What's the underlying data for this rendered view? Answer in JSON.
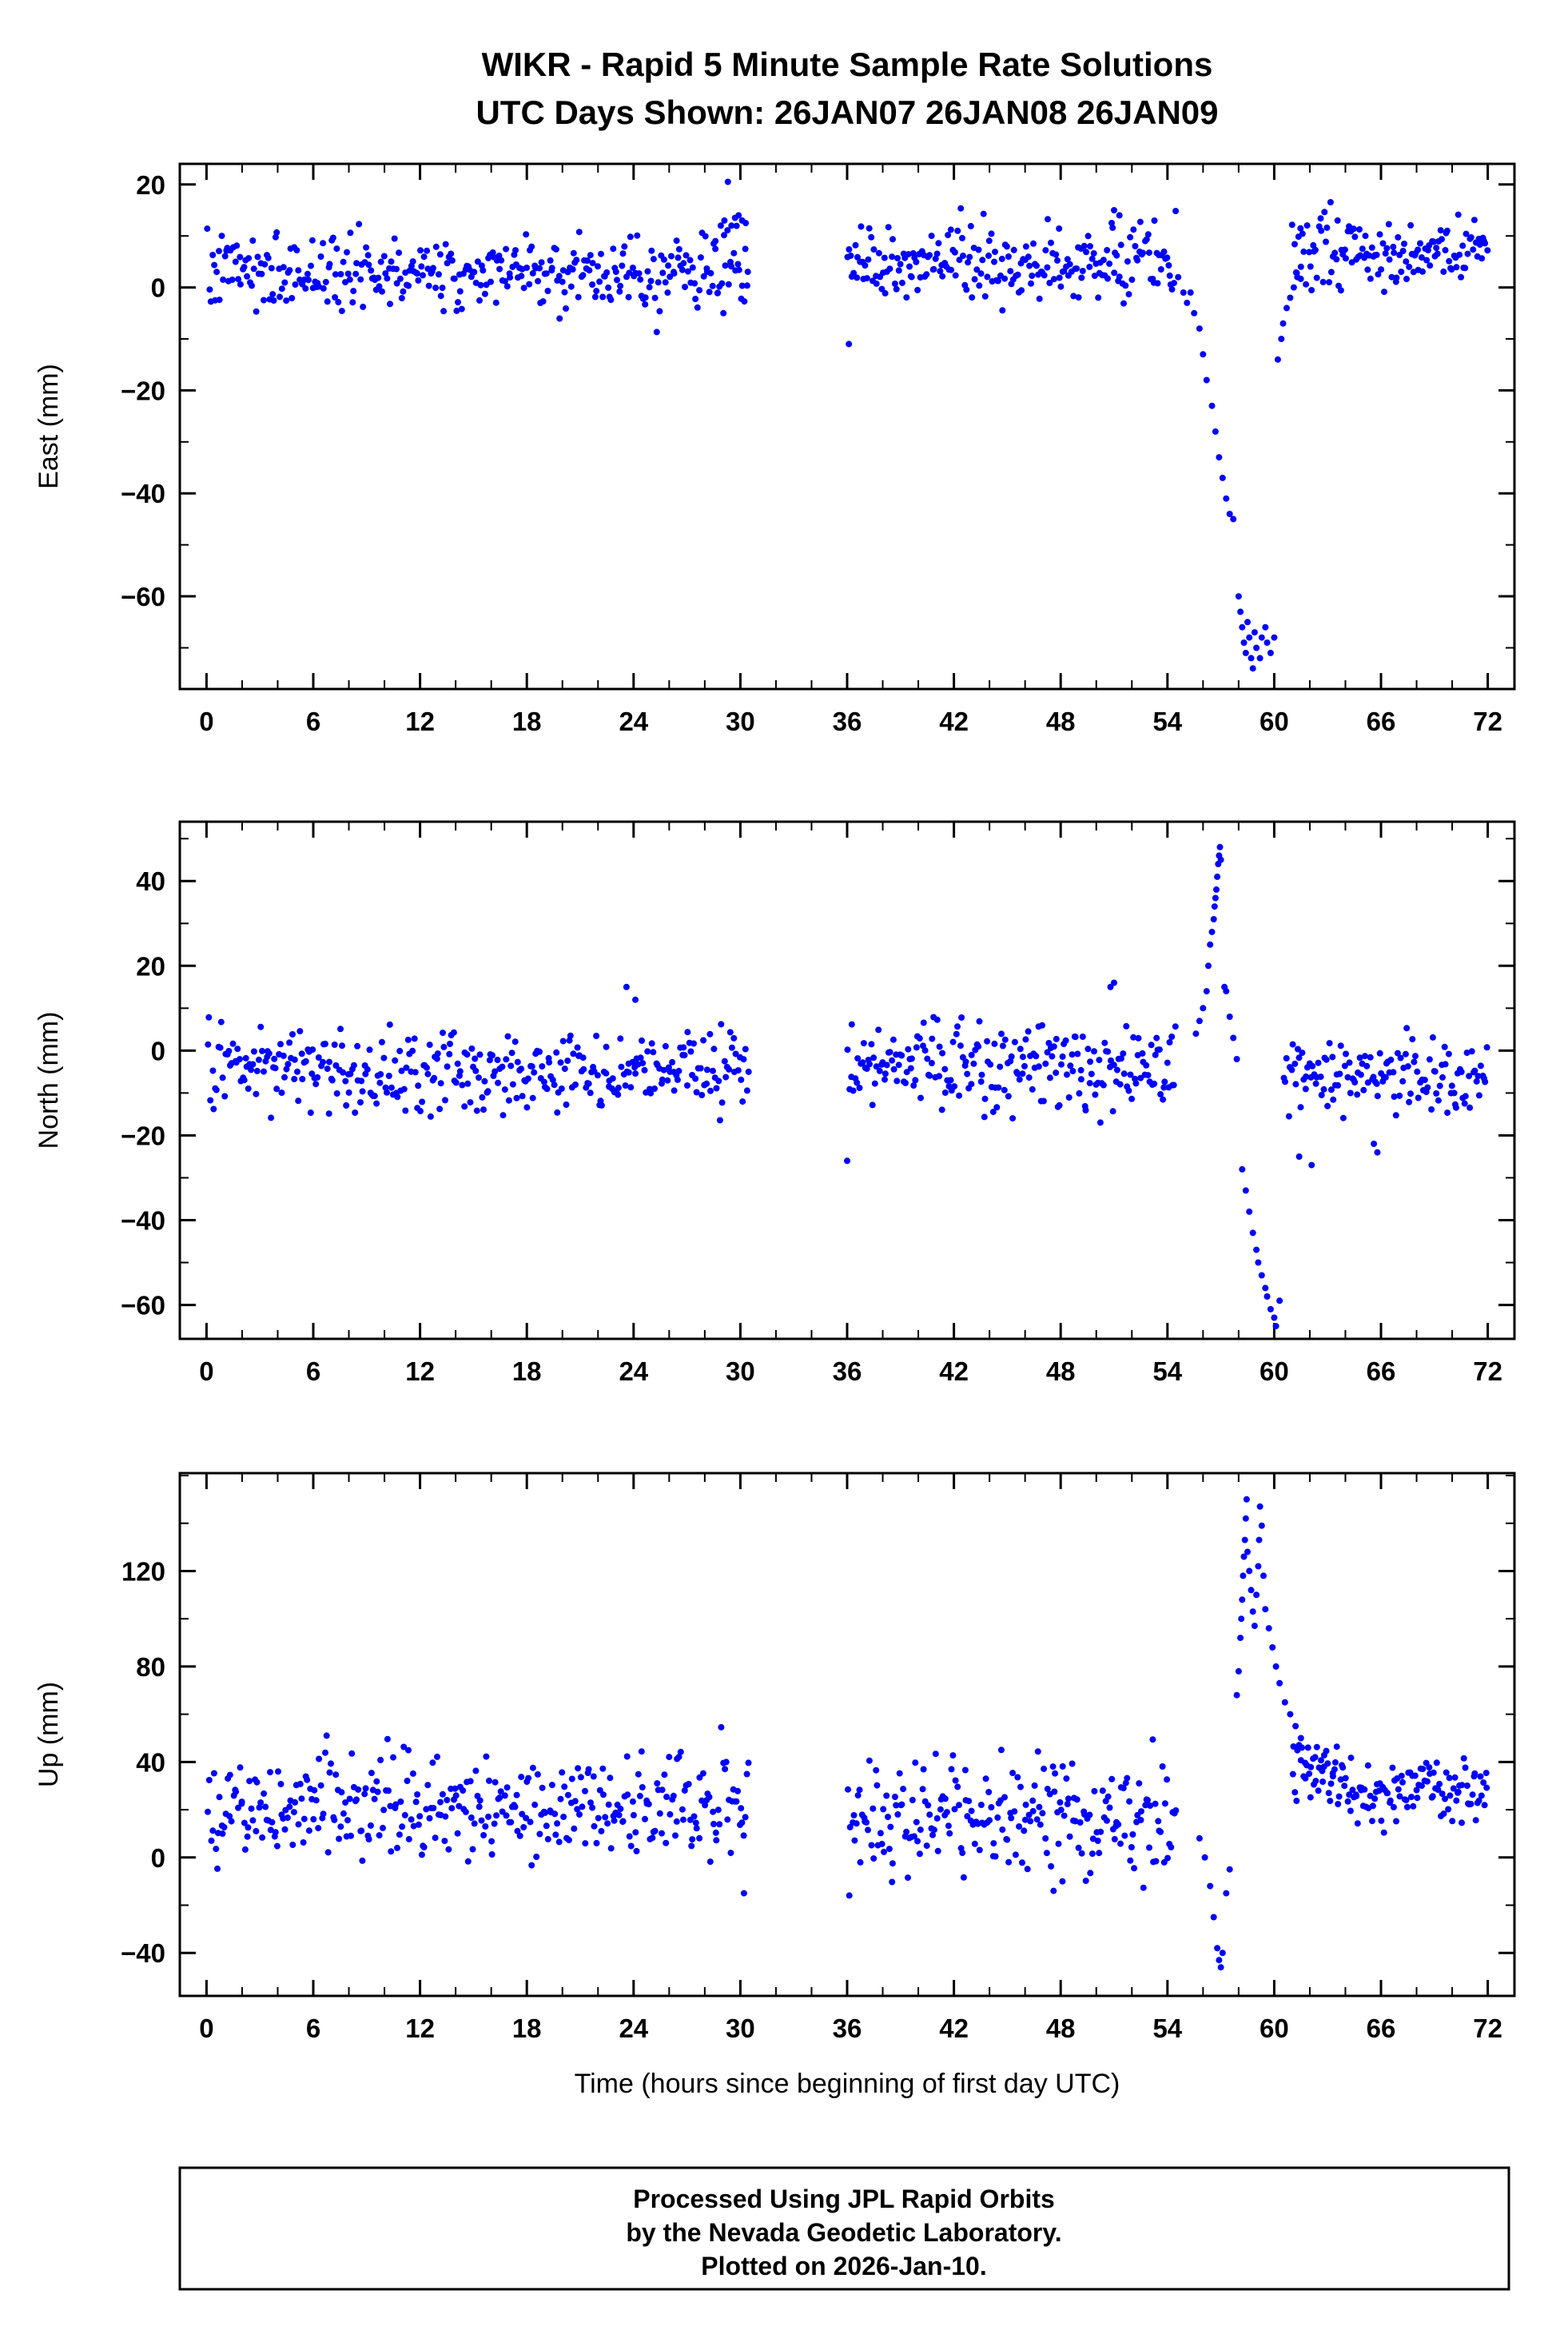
{
  "footer": {
    "lines": [
      "Processed Using JPL Rapid Orbits",
      "by the Nevada Geodetic Laboratory.",
      "Plotted on 2026-Jan-10."
    ]
  },
  "chart_data": {
    "type": "scatter",
    "title": "WIKR - Rapid 5 Minute Sample Rate Solutions",
    "subtitle": "UTC Days Shown:  26JAN07 26JAN08 26JAN09",
    "xlabel": "Time (hours since beginning of first day UTC)",
    "xlim": [
      -1.5,
      73.5
    ],
    "xticks": [
      0,
      6,
      12,
      18,
      24,
      30,
      36,
      42,
      48,
      54,
      60,
      66,
      72
    ],
    "x_minor_step": 2,
    "point_color": "#0000ff",
    "frame_color": "#000000",
    "legend": "none",
    "grid": false,
    "panels": [
      {
        "name": "east",
        "ylabel": "East (mm)",
        "ylim": [
          -78,
          24
        ],
        "yticks": [
          20,
          0,
          -20,
          -40,
          -60
        ],
        "y_minor_step": 10,
        "seed": 7,
        "noise_segments": [
          {
            "x0": 0.04,
            "x1": 30.5,
            "n": 360,
            "mean": 3,
            "std": 3.6,
            "min": -11,
            "max": 16
          },
          {
            "x0": 36.0,
            "x1": 54.5,
            "n": 225,
            "mean": 5,
            "std": 3.6,
            "min": -8,
            "max": 16
          },
          {
            "x0": 61.0,
            "x1": 72.0,
            "n": 135,
            "mean": 7,
            "std": 3.2,
            "min": -4,
            "max": 17
          }
        ],
        "feature_points": [
          [
            28.6,
            9
          ],
          [
            28.9,
            12
          ],
          [
            29.1,
            13
          ],
          [
            29.3,
            20.5
          ],
          [
            29.5,
            12
          ],
          [
            29.7,
            13.5
          ],
          [
            29.9,
            14
          ],
          [
            30.1,
            13
          ],
          [
            30.3,
            12.5
          ],
          [
            36.1,
            -11
          ],
          [
            51.0,
            15
          ],
          [
            51.3,
            14
          ],
          [
            54.6,
            2
          ],
          [
            54.9,
            -1
          ],
          [
            55.1,
            -3
          ],
          [
            55.3,
            -1
          ],
          [
            55.5,
            -5
          ],
          [
            55.8,
            -8
          ],
          [
            56.0,
            -13
          ],
          [
            56.2,
            -18
          ],
          [
            56.5,
            -23
          ],
          [
            56.7,
            -28
          ],
          [
            56.9,
            -33
          ],
          [
            57.1,
            -37
          ],
          [
            57.3,
            -41
          ],
          [
            57.5,
            -44
          ],
          [
            57.7,
            -45
          ],
          [
            58.0,
            -60
          ],
          [
            58.1,
            -63
          ],
          [
            58.2,
            -66
          ],
          [
            58.3,
            -69
          ],
          [
            58.4,
            -71
          ],
          [
            58.5,
            -65
          ],
          [
            58.6,
            -68
          ],
          [
            58.7,
            -72
          ],
          [
            58.8,
            -74
          ],
          [
            58.9,
            -67
          ],
          [
            59.0,
            -70
          ],
          [
            59.2,
            -72
          ],
          [
            59.3,
            -68
          ],
          [
            59.5,
            -66
          ],
          [
            59.6,
            -69
          ],
          [
            59.8,
            -71
          ],
          [
            60.0,
            -68
          ],
          [
            60.2,
            -14
          ],
          [
            60.4,
            -10
          ],
          [
            60.5,
            -7
          ],
          [
            60.7,
            -4
          ],
          [
            60.9,
            -2
          ],
          [
            61.1,
            0
          ],
          [
            61.3,
            2
          ],
          [
            61.5,
            4
          ]
        ]
      },
      {
        "name": "north",
        "ylabel": "North (mm)",
        "ylim": [
          -68,
          54
        ],
        "yticks": [
          40,
          20,
          0,
          -20,
          -40,
          -60
        ],
        "y_minor_step": 10,
        "seed": 13,
        "noise_segments": [
          {
            "x0": 0.04,
            "x1": 30.5,
            "n": 360,
            "mean": -5,
            "std": 5,
            "min": -18,
            "max": 13
          },
          {
            "x0": 36.0,
            "x1": 54.5,
            "n": 225,
            "mean": -4,
            "std": 5,
            "min": -17,
            "max": 14
          },
          {
            "x0": 60.5,
            "x1": 72.0,
            "n": 135,
            "mean": -6,
            "std": 5,
            "min": -16,
            "max": 9
          }
        ],
        "feature_points": [
          [
            23.6,
            15
          ],
          [
            24.1,
            12
          ],
          [
            36.0,
            -26
          ],
          [
            50.8,
            15
          ],
          [
            51.0,
            16
          ],
          [
            55.6,
            4
          ],
          [
            55.8,
            7
          ],
          [
            56.0,
            10
          ],
          [
            56.2,
            14
          ],
          [
            56.3,
            20
          ],
          [
            56.4,
            25
          ],
          [
            56.5,
            28
          ],
          [
            56.6,
            31
          ],
          [
            56.65,
            34
          ],
          [
            56.7,
            36
          ],
          [
            56.75,
            38
          ],
          [
            56.8,
            41
          ],
          [
            56.85,
            44
          ],
          [
            56.9,
            46
          ],
          [
            56.95,
            48
          ],
          [
            57.0,
            45
          ],
          [
            57.2,
            15
          ],
          [
            57.3,
            14
          ],
          [
            57.5,
            8
          ],
          [
            57.7,
            3
          ],
          [
            57.9,
            -2
          ],
          [
            58.2,
            -28
          ],
          [
            58.4,
            -33
          ],
          [
            58.6,
            -38
          ],
          [
            58.8,
            -43
          ],
          [
            59.0,
            -47
          ],
          [
            59.1,
            -50
          ],
          [
            59.3,
            -53
          ],
          [
            59.5,
            -56
          ],
          [
            59.6,
            -58
          ],
          [
            59.8,
            -61
          ],
          [
            60.0,
            -63
          ],
          [
            60.1,
            -65
          ],
          [
            60.3,
            -59
          ],
          [
            61.4,
            -25
          ],
          [
            62.1,
            -27
          ],
          [
            65.6,
            -22
          ],
          [
            65.8,
            -24
          ]
        ]
      },
      {
        "name": "up",
        "ylabel": "Up (mm)",
        "ylim": [
          -58,
          161
        ],
        "yticks": [
          120,
          80,
          40,
          0,
          -40
        ],
        "y_minor_step": 20,
        "seed": 21,
        "noise_segments": [
          {
            "x0": 0.04,
            "x1": 30.5,
            "n": 360,
            "mean": 22,
            "std": 11,
            "min": -16,
            "max": 56
          },
          {
            "x0": 36.0,
            "x1": 54.5,
            "n": 225,
            "mean": 18,
            "std": 12,
            "min": -20,
            "max": 57
          },
          {
            "x0": 61.0,
            "x1": 64.0,
            "n": 40,
            "mean": 35,
            "std": 8,
            "min": 18,
            "max": 62
          },
          {
            "x0": 64.0,
            "x1": 72.0,
            "n": 105,
            "mean": 27,
            "std": 8,
            "min": 8,
            "max": 52
          }
        ],
        "feature_points": [
          [
            30.2,
            -15
          ],
          [
            47.6,
            -14
          ],
          [
            48.1,
            -10
          ],
          [
            55.8,
            8
          ],
          [
            56.1,
            0
          ],
          [
            56.4,
            -12
          ],
          [
            56.6,
            -25
          ],
          [
            56.8,
            -38
          ],
          [
            56.9,
            -43
          ],
          [
            57.0,
            -46
          ],
          [
            57.1,
            -40
          ],
          [
            57.3,
            -15
          ],
          [
            57.5,
            -5
          ],
          [
            57.9,
            68
          ],
          [
            58.0,
            78
          ],
          [
            58.1,
            92
          ],
          [
            58.15,
            100
          ],
          [
            58.2,
            108
          ],
          [
            58.25,
            118
          ],
          [
            58.3,
            126
          ],
          [
            58.35,
            133
          ],
          [
            58.4,
            142
          ],
          [
            58.45,
            150
          ],
          [
            58.5,
            128
          ],
          [
            58.6,
            120
          ],
          [
            58.7,
            112
          ],
          [
            58.8,
            103
          ],
          [
            58.9,
            97
          ],
          [
            59.0,
            110
          ],
          [
            59.1,
            122
          ],
          [
            59.15,
            133
          ],
          [
            59.2,
            147
          ],
          [
            59.3,
            139
          ],
          [
            59.4,
            118
          ],
          [
            59.5,
            104
          ],
          [
            59.7,
            96
          ],
          [
            59.9,
            88
          ],
          [
            60.1,
            80
          ],
          [
            60.3,
            73
          ],
          [
            60.6,
            65
          ],
          [
            60.9,
            60
          ],
          [
            61.2,
            55
          ],
          [
            61.5,
            50
          ],
          [
            61.9,
            46
          ],
          [
            62.3,
            42
          ],
          [
            62.8,
            38
          ],
          [
            63.3,
            34
          ]
        ]
      }
    ]
  }
}
